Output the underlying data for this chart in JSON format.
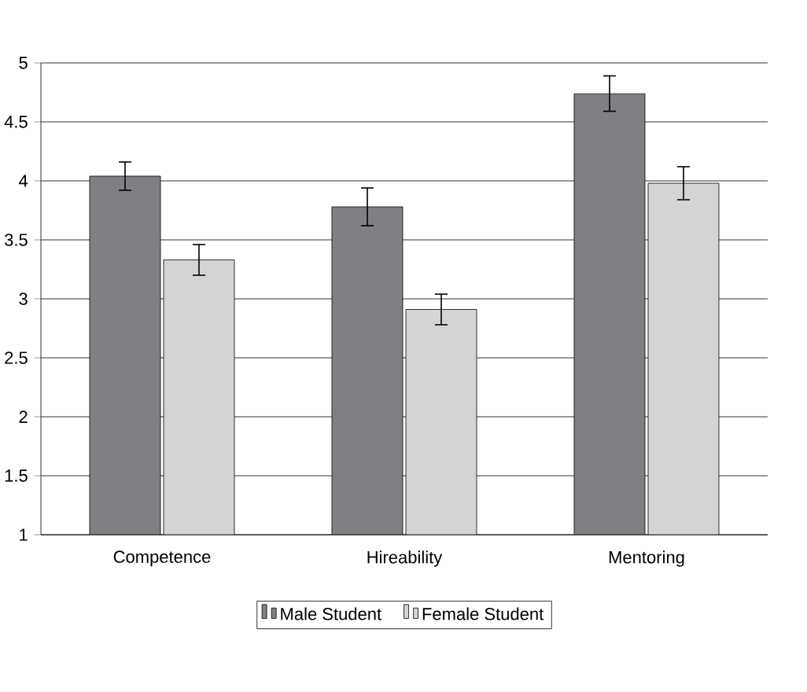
{
  "chart_data": {
    "type": "bar",
    "categories": [
      "Competence",
      "Hireability",
      "Mentoring"
    ],
    "series": [
      {
        "name": "Male Student",
        "color": "#808084",
        "values": [
          4.04,
          3.78,
          4.74
        ],
        "errors": [
          0.12,
          0.16,
          0.15
        ]
      },
      {
        "name": "Female Student",
        "color": "#d3d4d6",
        "values": [
          3.33,
          2.91,
          3.98
        ],
        "errors": [
          0.13,
          0.13,
          0.14
        ]
      }
    ],
    "ylim": [
      1,
      5
    ],
    "yticks": [
      1,
      1.5,
      2,
      2.5,
      3,
      3.5,
      4,
      4.5,
      5
    ],
    "grid": "y",
    "legend": "bottom"
  }
}
